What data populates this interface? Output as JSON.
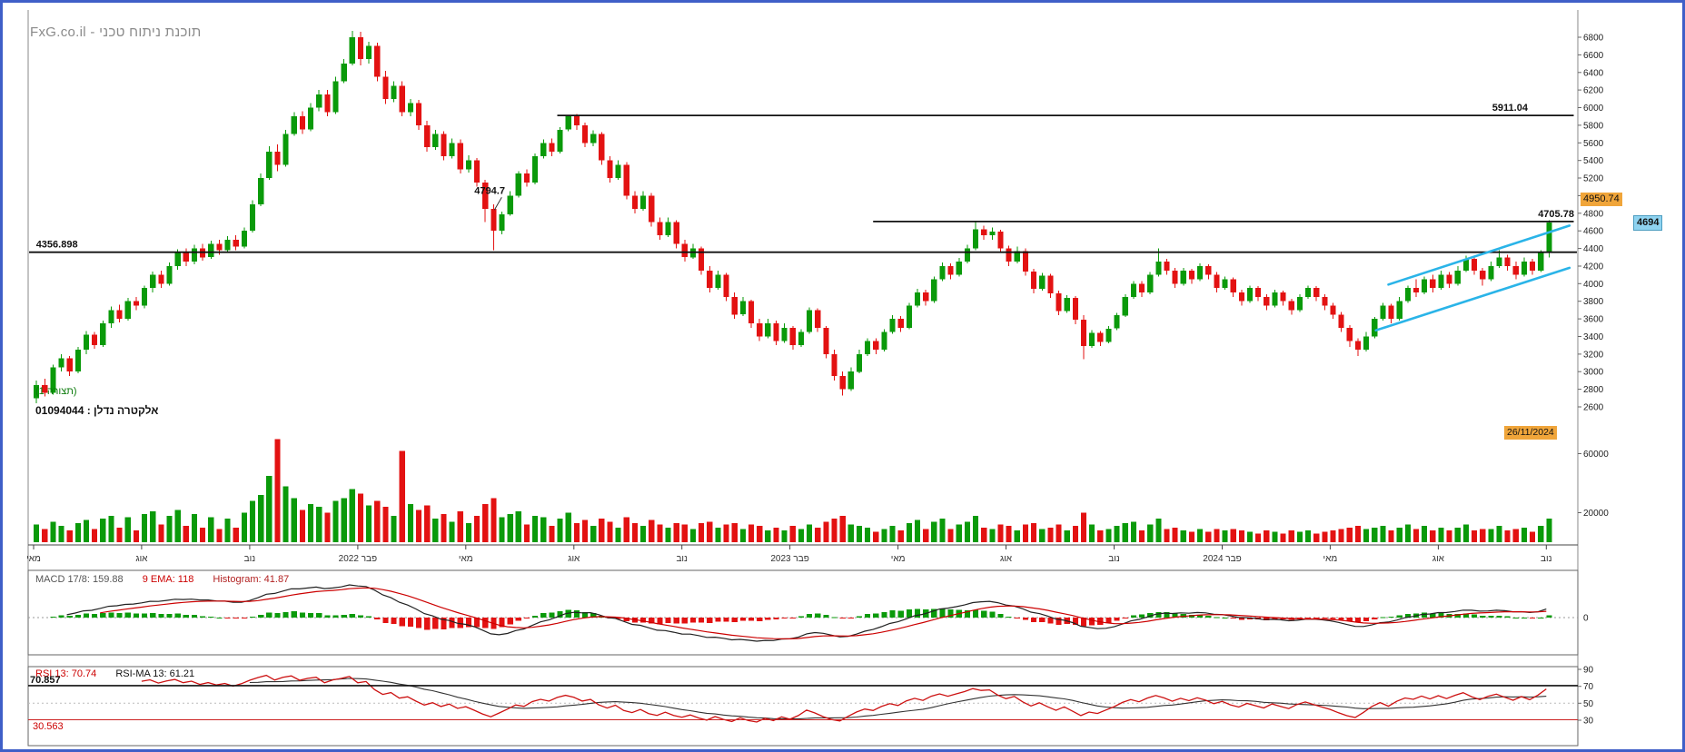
{
  "app": {
    "title": "FxG.co.il - תוכנת ניתוח טכני",
    "border_color": "#3f5fc8"
  },
  "price_panel": {
    "pattern_label": "(תצורה 1)",
    "symbol_label": "אלקטרה נדלן : 01094044"
  },
  "macd_panel": {
    "label_macd": "MACD 17/8: 159.88",
    "label_ema": "9 EMA: 118",
    "label_hist": "Histogram: 41.87",
    "zero_label": "0"
  },
  "rsi_panel": {
    "label_rsi": "RSI 13: 70.74",
    "label_ma": "RSI-MA 13: 61.21",
    "level_upper_label": "70.857",
    "level_lower_label": "30.563"
  },
  "colors": {
    "up": "#0a9a0a",
    "down": "#e31212",
    "macd_line": "#222222",
    "macd_signal": "#cc0000",
    "rsi_line": "#cc1111",
    "rsi_ma": "#333333",
    "channel": "#2ab4e8",
    "trendline": "#111111",
    "accent_orange": "#f0a53a",
    "accent_blue": "#8fd3f0"
  },
  "chart_data": {
    "type": "candlestick",
    "symbol": "אלקטרה נדלן",
    "symbol_id": "01094044",
    "timeframe": "weekly",
    "x_start": "May 2021",
    "x_end": "Nov 2024",
    "ylim": [
      2600,
      6900
    ],
    "last_price": "4694",
    "alert_price": "4950.74",
    "date_label": "26/11/2024",
    "price_ticks": [
      6800,
      6600,
      6400,
      6200,
      6000,
      5800,
      5600,
      5400,
      5200,
      5000,
      4800,
      4600,
      4400,
      4200,
      4000,
      3800,
      3600,
      3400,
      3200,
      3000,
      2800,
      2600
    ],
    "volume_ticks": [
      60000,
      20000
    ],
    "rsi_ticks": [
      90,
      70,
      50,
      30
    ],
    "x_ticks": [
      {
        "week": 0,
        "label": "מאי"
      },
      {
        "week": 13,
        "label": "אוג"
      },
      {
        "week": 26,
        "label": "נוב"
      },
      {
        "week": 39,
        "label": "פבר 2022"
      },
      {
        "week": 52,
        "label": "מאי"
      },
      {
        "week": 65,
        "label": "אוג"
      },
      {
        "week": 78,
        "label": "נוב"
      },
      {
        "week": 91,
        "label": "פבר 2023"
      },
      {
        "week": 104,
        "label": "מאי"
      },
      {
        "week": 117,
        "label": "אוג"
      },
      {
        "week": 130,
        "label": "נוב"
      },
      {
        "week": 143,
        "label": "פבר 2024"
      },
      {
        "week": 156,
        "label": "מאי"
      },
      {
        "week": 169,
        "label": "אוג"
      },
      {
        "week": 182,
        "label": "נוב"
      }
    ],
    "hlines": [
      {
        "price": 4356.898,
        "label": "4356.898",
        "from_week": -0.6,
        "to_week": 185.9,
        "label_week": 0.3
      },
      {
        "price": 5911.04,
        "label": "5911.04",
        "from_week": 63,
        "to_week": 185.3,
        "label_week": 175.5
      },
      {
        "price": 4705.78,
        "label": "4705.78",
        "from_week": 101,
        "to_week": 185.3,
        "label_week": 181
      }
    ],
    "channel": {
      "color": "#2ab4e8",
      "upper": [
        [
          163,
          3990
        ],
        [
          184.8,
          4660
        ]
      ],
      "lower": [
        [
          161.5,
          3470
        ],
        [
          184.8,
          4180
        ]
      ]
    },
    "annotations": [
      {
        "week": 55,
        "price": 4794.7,
        "label": "4794.7"
      }
    ],
    "macd": {
      "fast": 8,
      "slow": 17,
      "signal": 9
    },
    "rsi": {
      "period": 13,
      "levels": [
        70.857,
        30.563
      ]
    },
    "columns": [
      "open",
      "high",
      "low",
      "close",
      "volume"
    ],
    "candles": [
      [
        2700,
        2900,
        2640,
        2850,
        12000
      ],
      [
        2850,
        2920,
        2720,
        2760,
        9000
      ],
      [
        2760,
        3080,
        2740,
        3050,
        14000
      ],
      [
        3050,
        3200,
        3000,
        3150,
        11000
      ],
      [
        3150,
        3180,
        2950,
        3000,
        8000
      ],
      [
        3000,
        3280,
        2980,
        3250,
        13000
      ],
      [
        3250,
        3460,
        3200,
        3420,
        15000
      ],
      [
        3420,
        3450,
        3260,
        3300,
        9000
      ],
      [
        3300,
        3580,
        3280,
        3550,
        16000
      ],
      [
        3550,
        3740,
        3500,
        3700,
        18000
      ],
      [
        3700,
        3760,
        3560,
        3600,
        10000
      ],
      [
        3600,
        3840,
        3580,
        3800,
        17000
      ],
      [
        3800,
        3850,
        3700,
        3750,
        8000
      ],
      [
        3750,
        3980,
        3720,
        3950,
        19000
      ],
      [
        3950,
        4140,
        3900,
        4100,
        21000
      ],
      [
        4100,
        4150,
        3950,
        4000,
        12000
      ],
      [
        4000,
        4240,
        3980,
        4200,
        18000
      ],
      [
        4200,
        4390,
        4160,
        4350,
        22000
      ],
      [
        4350,
        4400,
        4200,
        4250,
        11000
      ],
      [
        4250,
        4440,
        4220,
        4400,
        19000
      ],
      [
        4400,
        4450,
        4260,
        4300,
        10000
      ],
      [
        4300,
        4490,
        4280,
        4450,
        17000
      ],
      [
        4450,
        4500,
        4330,
        4380,
        9000
      ],
      [
        4380,
        4540,
        4350,
        4500,
        16000
      ],
      [
        4500,
        4550,
        4380,
        4420,
        10000
      ],
      [
        4420,
        4640,
        4400,
        4600,
        20000
      ],
      [
        4600,
        4950,
        4580,
        4900,
        28000
      ],
      [
        4900,
        5250,
        4880,
        5200,
        32000
      ],
      [
        5200,
        5560,
        5180,
        5500,
        45000
      ],
      [
        5500,
        5580,
        5280,
        5350,
        70000
      ],
      [
        5350,
        5750,
        5330,
        5700,
        38000
      ],
      [
        5700,
        5950,
        5680,
        5900,
        30000
      ],
      [
        5900,
        5960,
        5700,
        5750,
        22000
      ],
      [
        5750,
        6050,
        5730,
        6000,
        26000
      ],
      [
        6000,
        6200,
        5960,
        6150,
        24000
      ],
      [
        6150,
        6200,
        5900,
        5950,
        20000
      ],
      [
        5950,
        6350,
        5930,
        6300,
        28000
      ],
      [
        6300,
        6550,
        6280,
        6500,
        30000
      ],
      [
        6500,
        6870,
        6480,
        6800,
        36000
      ],
      [
        6800,
        6860,
        6480,
        6550,
        33000
      ],
      [
        6550,
        6750,
        6500,
        6700,
        25000
      ],
      [
        6700,
        6740,
        6300,
        6350,
        28000
      ],
      [
        6350,
        6420,
        6040,
        6100,
        24000
      ],
      [
        6100,
        6300,
        6060,
        6250,
        18000
      ],
      [
        6250,
        6300,
        5900,
        5950,
        62000
      ],
      [
        5950,
        6100,
        5900,
        6050,
        26000
      ],
      [
        6050,
        6090,
        5750,
        5800,
        22000
      ],
      [
        5800,
        5850,
        5500,
        5550,
        25000
      ],
      [
        5550,
        5750,
        5520,
        5700,
        16000
      ],
      [
        5700,
        5730,
        5400,
        5450,
        19000
      ],
      [
        5450,
        5650,
        5420,
        5600,
        14000
      ],
      [
        5600,
        5640,
        5250,
        5300,
        21000
      ],
      [
        5300,
        5460,
        5260,
        5400,
        13000
      ],
      [
        5400,
        5430,
        5100,
        5150,
        18000
      ],
      [
        5150,
        5180,
        4700,
        4850,
        26000
      ],
      [
        4850,
        4900,
        4380,
        4600,
        30000
      ],
      [
        4600,
        4820,
        4560,
        4790,
        17000
      ],
      [
        4790,
        5050,
        4770,
        5000,
        19000
      ],
      [
        5000,
        5280,
        4980,
        5250,
        21000
      ],
      [
        5250,
        5300,
        5100,
        5150,
        12000
      ],
      [
        5150,
        5480,
        5130,
        5450,
        18000
      ],
      [
        5450,
        5640,
        5420,
        5600,
        17000
      ],
      [
        5600,
        5650,
        5450,
        5500,
        11000
      ],
      [
        5500,
        5780,
        5480,
        5750,
        16000
      ],
      [
        5750,
        5920,
        5730,
        5900,
        20000
      ],
      [
        5900,
        5930,
        5750,
        5800,
        13000
      ],
      [
        5800,
        5830,
        5550,
        5600,
        15000
      ],
      [
        5600,
        5740,
        5560,
        5700,
        11000
      ],
      [
        5700,
        5720,
        5350,
        5400,
        16000
      ],
      [
        5400,
        5450,
        5150,
        5200,
        14000
      ],
      [
        5200,
        5400,
        5180,
        5350,
        10000
      ],
      [
        5350,
        5380,
        4960,
        5000,
        17000
      ],
      [
        5000,
        5050,
        4800,
        4850,
        13000
      ],
      [
        4850,
        5050,
        4830,
        5000,
        11000
      ],
      [
        5000,
        5030,
        4650,
        4700,
        15000
      ],
      [
        4700,
        4750,
        4500,
        4550,
        12000
      ],
      [
        4550,
        4750,
        4530,
        4700,
        10000
      ],
      [
        4700,
        4720,
        4400,
        4450,
        13000
      ],
      [
        4450,
        4500,
        4250,
        4300,
        12000
      ],
      [
        4300,
        4450,
        4280,
        4400,
        9000
      ],
      [
        4400,
        4420,
        4100,
        4150,
        13000
      ],
      [
        4150,
        4200,
        3900,
        3950,
        14000
      ],
      [
        3950,
        4150,
        3930,
        4100,
        10000
      ],
      [
        4100,
        4120,
        3800,
        3850,
        12000
      ],
      [
        3850,
        3900,
        3600,
        3650,
        13000
      ],
      [
        3650,
        3850,
        3630,
        3800,
        9000
      ],
      [
        3800,
        3820,
        3500,
        3550,
        12000
      ],
      [
        3550,
        3600,
        3350,
        3400,
        11000
      ],
      [
        3400,
        3600,
        3380,
        3550,
        8000
      ],
      [
        3550,
        3580,
        3300,
        3350,
        10000
      ],
      [
        3350,
        3550,
        3330,
        3500,
        8000
      ],
      [
        3500,
        3520,
        3250,
        3300,
        11000
      ],
      [
        3300,
        3480,
        3280,
        3450,
        9000
      ],
      [
        3450,
        3730,
        3430,
        3700,
        12000
      ],
      [
        3700,
        3720,
        3450,
        3500,
        10000
      ],
      [
        3500,
        3520,
        3150,
        3200,
        14000
      ],
      [
        3200,
        3250,
        2900,
        2950,
        16000
      ],
      [
        2950,
        3000,
        2730,
        2800,
        18000
      ],
      [
        2800,
        3050,
        2780,
        3000,
        12000
      ],
      [
        3000,
        3250,
        2980,
        3200,
        11000
      ],
      [
        3200,
        3380,
        3180,
        3350,
        10000
      ],
      [
        3350,
        3380,
        3200,
        3250,
        7000
      ],
      [
        3250,
        3480,
        3230,
        3450,
        9000
      ],
      [
        3450,
        3640,
        3430,
        3600,
        11000
      ],
      [
        3600,
        3630,
        3450,
        3500,
        8000
      ],
      [
        3500,
        3780,
        3480,
        3750,
        13000
      ],
      [
        3750,
        3940,
        3730,
        3900,
        15000
      ],
      [
        3900,
        3930,
        3750,
        3800,
        9000
      ],
      [
        3800,
        4080,
        3780,
        4050,
        14000
      ],
      [
        4050,
        4240,
        4030,
        4200,
        16000
      ],
      [
        4200,
        4230,
        4050,
        4100,
        9000
      ],
      [
        4100,
        4290,
        4080,
        4250,
        12000
      ],
      [
        4250,
        4440,
        4230,
        4400,
        14000
      ],
      [
        4400,
        4700,
        4380,
        4620,
        18000
      ],
      [
        4620,
        4660,
        4500,
        4550,
        10000
      ],
      [
        4550,
        4640,
        4500,
        4590,
        9000
      ],
      [
        4590,
        4610,
        4350,
        4400,
        12000
      ],
      [
        4400,
        4430,
        4200,
        4250,
        11000
      ],
      [
        4250,
        4420,
        4230,
        4370,
        8000
      ],
      [
        4370,
        4400,
        4090,
        4140,
        12000
      ],
      [
        4140,
        4170,
        3890,
        3940,
        13000
      ],
      [
        3940,
        4120,
        3920,
        4090,
        9000
      ],
      [
        4090,
        4110,
        3840,
        3890,
        10000
      ],
      [
        3890,
        3920,
        3640,
        3690,
        12000
      ],
      [
        3690,
        3870,
        3670,
        3840,
        8000
      ],
      [
        3840,
        3860,
        3540,
        3590,
        11000
      ],
      [
        3590,
        3640,
        3140,
        3290,
        20000
      ],
      [
        3290,
        3470,
        3270,
        3440,
        12000
      ],
      [
        3440,
        3460,
        3290,
        3340,
        8000
      ],
      [
        3340,
        3520,
        3320,
        3490,
        9000
      ],
      [
        3490,
        3670,
        3470,
        3640,
        11000
      ],
      [
        3640,
        3880,
        3620,
        3850,
        13000
      ],
      [
        3850,
        4030,
        3830,
        4000,
        14000
      ],
      [
        4000,
        4030,
        3850,
        3900,
        8000
      ],
      [
        3900,
        4130,
        3880,
        4100,
        12000
      ],
      [
        4100,
        4400,
        4080,
        4250,
        16000
      ],
      [
        4250,
        4280,
        4100,
        4150,
        9000
      ],
      [
        4150,
        4180,
        3950,
        4000,
        10000
      ],
      [
        4000,
        4180,
        3980,
        4150,
        8000
      ],
      [
        4150,
        4170,
        4000,
        4050,
        7000
      ],
      [
        4050,
        4230,
        4030,
        4200,
        9000
      ],
      [
        4200,
        4220,
        4050,
        4100,
        7000
      ],
      [
        4100,
        4130,
        3900,
        3950,
        9000
      ],
      [
        3950,
        4080,
        3930,
        4050,
        8000
      ],
      [
        4050,
        4070,
        3850,
        3900,
        9000
      ],
      [
        3900,
        3930,
        3750,
        3800,
        8000
      ],
      [
        3800,
        3980,
        3780,
        3950,
        7000
      ],
      [
        3950,
        3970,
        3800,
        3850,
        6000
      ],
      [
        3850,
        3880,
        3700,
        3750,
        8000
      ],
      [
        3750,
        3930,
        3730,
        3900,
        7000
      ],
      [
        3900,
        3920,
        3750,
        3800,
        6000
      ],
      [
        3800,
        3830,
        3650,
        3700,
        8000
      ],
      [
        3700,
        3880,
        3680,
        3850,
        7000
      ],
      [
        3850,
        3980,
        3830,
        3950,
        8000
      ],
      [
        3950,
        3970,
        3800,
        3850,
        6000
      ],
      [
        3850,
        3880,
        3700,
        3750,
        7000
      ],
      [
        3750,
        3780,
        3600,
        3650,
        8000
      ],
      [
        3650,
        3680,
        3450,
        3500,
        9000
      ],
      [
        3500,
        3530,
        3280,
        3350,
        10000
      ],
      [
        3350,
        3380,
        3180,
        3250,
        11000
      ],
      [
        3250,
        3450,
        3230,
        3400,
        9000
      ],
      [
        3400,
        3620,
        3380,
        3600,
        10000
      ],
      [
        3600,
        3780,
        3580,
        3750,
        11000
      ],
      [
        3750,
        3770,
        3550,
        3600,
        8000
      ],
      [
        3600,
        3850,
        3580,
        3800,
        10000
      ],
      [
        3800,
        3980,
        3780,
        3950,
        12000
      ],
      [
        3950,
        4050,
        3850,
        3900,
        9000
      ],
      [
        3900,
        4080,
        3880,
        4050,
        11000
      ],
      [
        4050,
        4100,
        3900,
        3950,
        8000
      ],
      [
        3950,
        4150,
        3930,
        4100,
        10000
      ],
      [
        4100,
        4130,
        3950,
        4000,
        8000
      ],
      [
        4000,
        4200,
        3980,
        4150,
        10000
      ],
      [
        4150,
        4320,
        4130,
        4280,
        12000
      ],
      [
        4280,
        4300,
        4100,
        4150,
        8000
      ],
      [
        4150,
        4180,
        3980,
        4050,
        9000
      ],
      [
        4050,
        4250,
        4030,
        4200,
        9000
      ],
      [
        4200,
        4380,
        4180,
        4300,
        11000
      ],
      [
        4300,
        4330,
        4150,
        4200,
        8000
      ],
      [
        4200,
        4250,
        4050,
        4100,
        9000
      ],
      [
        4100,
        4300,
        4080,
        4250,
        10000
      ],
      [
        4250,
        4280,
        4100,
        4150,
        7000
      ],
      [
        4150,
        4380,
        4130,
        4350,
        11000
      ],
      [
        4350,
        4720,
        4300,
        4694,
        16000
      ]
    ]
  }
}
